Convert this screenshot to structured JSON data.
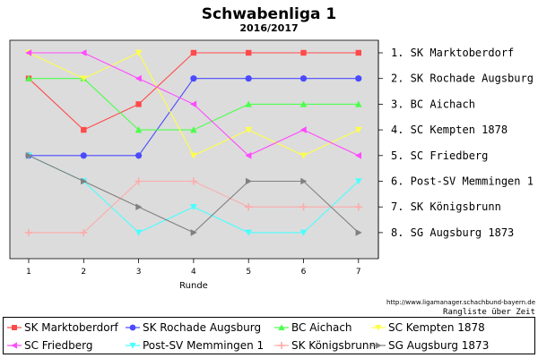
{
  "chart_data": {
    "type": "line",
    "title": "Schwabenliga 1",
    "subtitle": "2016/2017",
    "xlabel": "Runde",
    "x": [
      1,
      2,
      3,
      4,
      5,
      6,
      7
    ],
    "ylim": [
      1,
      8
    ],
    "y_inverted": true,
    "grid": false,
    "legend_position": "bottom",
    "source_url": "http://www.ligamanager.schachbund-bayern.de",
    "caption": "Rangliste über Zeit",
    "final_ranking": [
      "1. SK Marktoberdorf",
      "2. SK Rochade Augsburg",
      "3. BC Aichach",
      "4. SC Kempten 1878",
      "5. SC Friedberg",
      "6. Post-SV Memmingen 1",
      "7. SK Königsbrunn",
      "8. SG Augsburg 1873"
    ],
    "series": [
      {
        "name": "SK Marktoberdorf",
        "color": "#ff4a4a",
        "marker": "square",
        "values": [
          2,
          4,
          3,
          1,
          1,
          1,
          1
        ]
      },
      {
        "name": "SK Rochade Augsburg",
        "color": "#4a4aff",
        "marker": "circle",
        "values": [
          5,
          5,
          5,
          2,
          2,
          2,
          2
        ]
      },
      {
        "name": "BC Aichach",
        "color": "#4aff4a",
        "marker": "triangle-up",
        "values": [
          2,
          2,
          4,
          4,
          3,
          3,
          3
        ]
      },
      {
        "name": "SC Kempten 1878",
        "color": "#ffff4a",
        "marker": "triangle-down",
        "values": [
          1,
          2,
          1,
          5,
          4,
          5,
          4
        ]
      },
      {
        "name": "SC Friedberg",
        "color": "#ff4aff",
        "marker": "triangle-left",
        "values": [
          1,
          1,
          2,
          3,
          5,
          4,
          5
        ]
      },
      {
        "name": "Post-SV Memmingen 1",
        "color": "#4affff",
        "marker": "triangle-down",
        "values": [
          5,
          6,
          8,
          7,
          8,
          8,
          6
        ]
      },
      {
        "name": "SK Königsbrunn",
        "color": "#ffaaaa",
        "marker": "plus",
        "values": [
          8,
          8,
          6,
          6,
          7,
          7,
          7
        ]
      },
      {
        "name": "SG Augsburg 1873",
        "color": "#808080",
        "marker": "triangle-right",
        "values": [
          5,
          6,
          7,
          8,
          6,
          6,
          8
        ]
      }
    ]
  }
}
